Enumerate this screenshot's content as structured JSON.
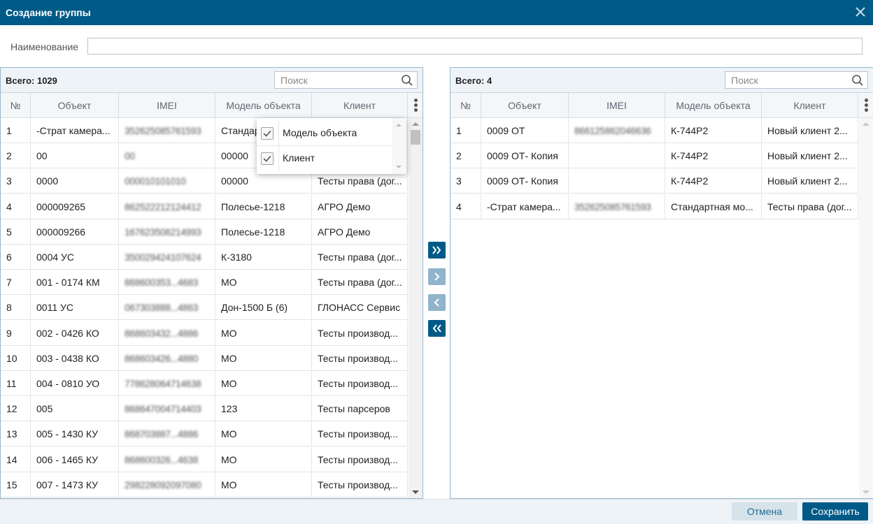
{
  "dialog": {
    "title": "Создание группы",
    "close_icon": "close-icon"
  },
  "name_field": {
    "label": "Наименование",
    "value": ""
  },
  "left": {
    "total": "Всего: 1029",
    "search_placeholder": "Поиск",
    "columns": [
      "№",
      "Объект",
      "IMEI",
      "Модель объекта",
      "Клиент"
    ],
    "rows": [
      [
        "1",
        "-Страт камера...",
        "352625085761593",
        "Стандартная мо...",
        ""
      ],
      [
        "2",
        "00",
        "00",
        "00000",
        ""
      ],
      [
        "3",
        "0000",
        "000010101010",
        "00000",
        "Тесты права (дог..."
      ],
      [
        "4",
        "000009265",
        "862522212124412",
        "Полесье-1218",
        "АГРО Демо"
      ],
      [
        "5",
        "000009266",
        "167623506214993",
        "Полесье-1218",
        "АГРО Демо"
      ],
      [
        "6",
        "0004 УС",
        "350029424107624",
        "К-3180",
        "Тесты права (дог..."
      ],
      [
        "7",
        "001 - 0174 КМ",
        "868600353...4683",
        "МО",
        "Тесты права (дог..."
      ],
      [
        "8",
        "0011 УС",
        "067303888...4863",
        "Дон-1500 Б (6)",
        "ГЛОНАСС Сервис"
      ],
      [
        "9",
        "002 - 0426 КО",
        "868603432...4886",
        "МО",
        "Тесты производ..."
      ],
      [
        "10",
        "003 - 0438 КО",
        "868603426...4880",
        "МО",
        "Тесты производ..."
      ],
      [
        "11",
        "004 - 0810 УО",
        "778628064714638",
        "МО",
        "Тесты производ..."
      ],
      [
        "12",
        "005",
        "868647004714403",
        "123",
        "Тесты парсеров"
      ],
      [
        "13",
        "005 - 1430 КУ",
        "868703887...4886",
        "МО",
        "Тесты производ..."
      ],
      [
        "14",
        "006 - 1465 КУ",
        "868600326...4638",
        "МО",
        "Тесты производ..."
      ],
      [
        "15",
        "007 - 1473 КУ",
        "298228092097080",
        "МО",
        "Тесты производ..."
      ]
    ]
  },
  "column_menu": {
    "items": [
      {
        "label": "Модель объекта",
        "checked": true
      },
      {
        "label": "Клиент",
        "checked": true
      }
    ]
  },
  "right": {
    "total": "Всего: 4",
    "search_placeholder": "Поиск",
    "columns": [
      "№",
      "Объект",
      "IMEI",
      "Модель объекта",
      "Клиент"
    ],
    "rows": [
      [
        "1",
        "0009 ОТ",
        "866125862046636",
        "К-744Р2",
        "Новый клиент 2..."
      ],
      [
        "2",
        "0009 ОТ- Копия",
        "",
        "К-744Р2",
        "Новый клиент 2..."
      ],
      [
        "3",
        "0009 ОТ- Копия",
        "",
        "К-744Р2",
        "Новый клиент 2..."
      ],
      [
        "4",
        "-Страт камера...",
        "352625085761593",
        "Стандартная мо...",
        "Тесты права (дог..."
      ]
    ]
  },
  "move_buttons": [
    {
      "name": "move-all-right-button",
      "glyph": "»",
      "active": true
    },
    {
      "name": "move-right-button",
      "glyph": "›",
      "active": false
    },
    {
      "name": "move-left-button",
      "glyph": "‹",
      "active": false
    },
    {
      "name": "move-all-left-button",
      "glyph": "«",
      "active": true
    }
  ],
  "footer": {
    "cancel": "Отмена",
    "save": "Сохранить"
  }
}
